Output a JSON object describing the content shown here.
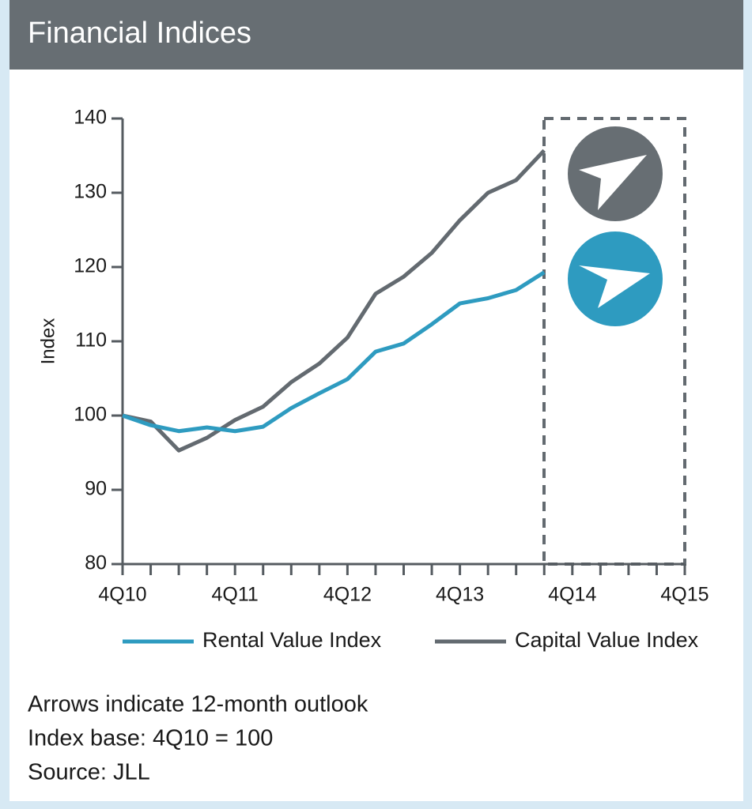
{
  "chart_data": {
    "type": "line",
    "title": "Financial Indices",
    "y_label": "Index",
    "categories": [
      "4Q10",
      null,
      null,
      null,
      "4Q11",
      null,
      null,
      null,
      "4Q12",
      null,
      null,
      null,
      "4Q13",
      null,
      null,
      null,
      "4Q14",
      null,
      null,
      null,
      "4Q15"
    ],
    "series": [
      {
        "name": "Rental Value Index",
        "color": "#2e9bc0",
        "values": [
          100,
          98.7,
          97.9,
          98.4,
          97.9,
          98.5,
          101,
          103,
          104.9,
          108.6,
          109.7,
          112.3,
          115.1,
          115.8,
          116.9,
          119.3,
          null,
          null,
          null,
          null,
          null
        ]
      },
      {
        "name": "Capital Value Index",
        "color": "#636a70",
        "values": [
          100,
          99.2,
          95.3,
          97,
          99.4,
          101.2,
          104.5,
          107,
          110.5,
          116.4,
          118.7,
          121.9,
          126.3,
          130,
          131.7,
          135.7,
          null,
          null,
          null,
          null,
          null
        ]
      }
    ],
    "ylim": [
      80,
      140
    ],
    "yticks": [
      80,
      90,
      100,
      110,
      120,
      130,
      140
    ],
    "grid": false,
    "notes": [
      "Arrows indicate 12-month outlook",
      "Index base: 4Q10 = 100",
      "Source: JLL"
    ]
  }
}
